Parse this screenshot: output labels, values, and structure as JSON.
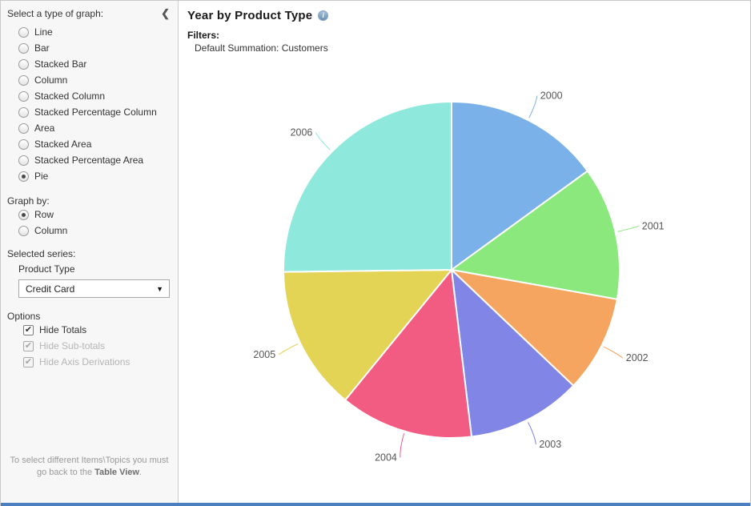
{
  "sidebar": {
    "graph_type_label": "Select a type of graph:",
    "collapse_icon": "chevron-left",
    "graph_types": [
      {
        "label": "Line",
        "selected": false
      },
      {
        "label": "Bar",
        "selected": false
      },
      {
        "label": "Stacked Bar",
        "selected": false
      },
      {
        "label": "Column",
        "selected": false
      },
      {
        "label": "Stacked Column",
        "selected": false
      },
      {
        "label": "Stacked Percentage Column",
        "selected": false
      },
      {
        "label": "Area",
        "selected": false
      },
      {
        "label": "Stacked Area",
        "selected": false
      },
      {
        "label": "Stacked Percentage Area",
        "selected": false
      },
      {
        "label": "Pie",
        "selected": true
      }
    ],
    "graph_by_label": "Graph by:",
    "graph_by_options": [
      {
        "label": "Row",
        "selected": true
      },
      {
        "label": "Column",
        "selected": false
      }
    ],
    "selected_series_label": "Selected series:",
    "series_name": "Product Type",
    "series_value": "Credit Card",
    "options_label": "Options",
    "options": [
      {
        "label": "Hide Totals",
        "checked": true,
        "disabled": false
      },
      {
        "label": "Hide Sub-totals",
        "checked": true,
        "disabled": true
      },
      {
        "label": "Hide Axis Derivations",
        "checked": true,
        "disabled": true
      }
    ],
    "footer_note_line1": "To select different Items\\Topics you must",
    "footer_note_line2_prefix": "go back to the ",
    "footer_note_bold": "Table View",
    "footer_note_suffix": "."
  },
  "main": {
    "title": "Year by Product Type",
    "filters_label": "Filters:",
    "filters_value": "Default Summation: Customers"
  },
  "chart_data": {
    "type": "pie",
    "title": "Year by Product Type",
    "summation": "Customers",
    "categories": [
      "2000",
      "2001",
      "2002",
      "2003",
      "2004",
      "2005",
      "2006"
    ],
    "values": [
      15.0,
      12.8,
      9.3,
      11.0,
      12.8,
      13.9,
      25.2
    ],
    "unit": "percent_of_total",
    "colors": [
      "#7ab1e8",
      "#8ae87d",
      "#f5a55f",
      "#8085e6",
      "#f25c82",
      "#e3d455",
      "#8fe8dc"
    ],
    "start_angle_deg": 0,
    "direction": "clockwise",
    "label_color": "#555555",
    "slice_border_color": "#ffffff",
    "legend": "none"
  },
  "colors": {
    "accent_bottom_bar": "#4b7fc0",
    "sidebar_bg": "#f7f7f7",
    "border": "#cccccc"
  }
}
